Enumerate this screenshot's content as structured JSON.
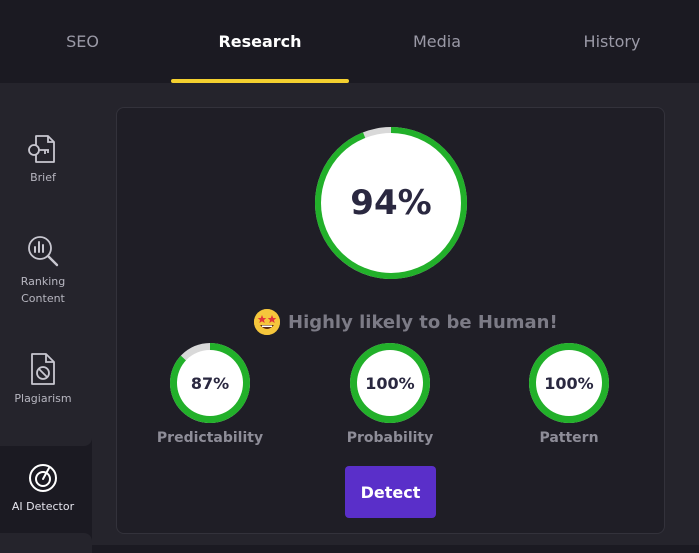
{
  "tabs": [
    {
      "label": "SEO",
      "active": false
    },
    {
      "label": "Research",
      "active": true
    },
    {
      "label": "Media",
      "active": false
    },
    {
      "label": "History",
      "active": false
    }
  ],
  "sidebar": {
    "items": [
      {
        "label": "Brief",
        "icon": "brief-key-icon"
      },
      {
        "label": "Ranking Content",
        "icon": "ranking-chart-search-icon"
      },
      {
        "label": "Plagiarism",
        "icon": "plagiarism-document-icon"
      },
      {
        "label": "AI Detector",
        "icon": "ai-detector-icon"
      }
    ]
  },
  "detector": {
    "overall_score": "94%",
    "overall_value": 94,
    "verdict": "Highly likely to be Human!",
    "verdict_icon": "star-eyes-emoji-icon",
    "metrics": [
      {
        "label": "Predictability",
        "score": "87%",
        "value": 87
      },
      {
        "label": "Probability",
        "score": "100%",
        "value": 100
      },
      {
        "label": "Pattern",
        "score": "100%",
        "value": 100
      }
    ],
    "detect_button": "Detect"
  },
  "colors": {
    "accent_green": "#22b02a",
    "track_gray": "#d9d9d9",
    "active_tab_underline": "#f4d02f",
    "button_purple": "#5a2fc9"
  }
}
